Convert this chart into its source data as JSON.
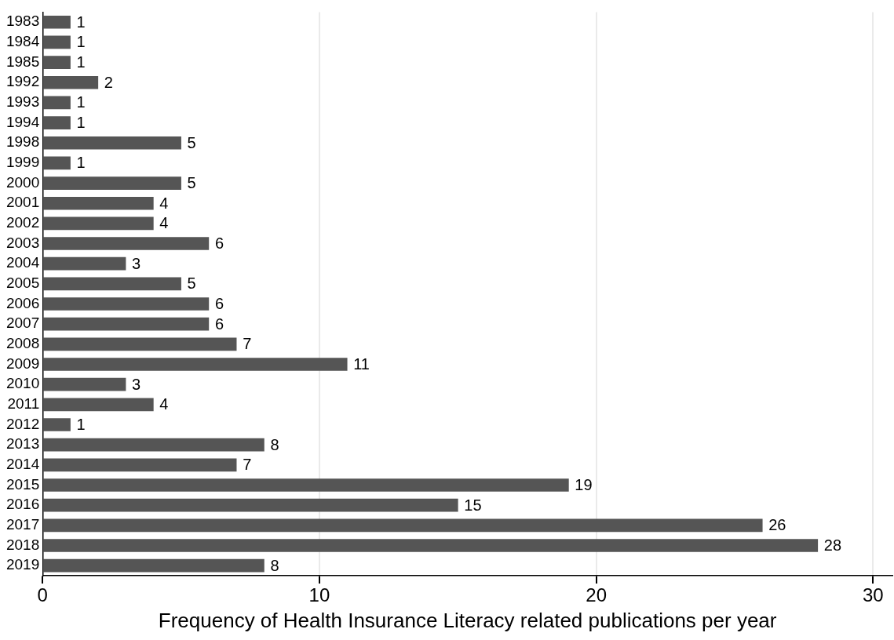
{
  "chart_data": {
    "type": "bar",
    "orientation": "horizontal",
    "xlabel": "Frequency of Health Insurance Literacy related publications per year",
    "categories": [
      "1983",
      "1984",
      "1985",
      "1992",
      "1993",
      "1994",
      "1998",
      "1999",
      "2000",
      "2001",
      "2002",
      "2003",
      "2004",
      "2005",
      "2006",
      "2007",
      "2008",
      "2009",
      "2010",
      "2011",
      "2012",
      "2013",
      "2014",
      "2015",
      "2016",
      "2017",
      "2018",
      "2019"
    ],
    "values": [
      1,
      1,
      1,
      2,
      1,
      1,
      5,
      1,
      5,
      4,
      4,
      6,
      3,
      5,
      6,
      6,
      7,
      11,
      3,
      4,
      1,
      8,
      7,
      19,
      15,
      26,
      28,
      8
    ],
    "color": "#555555",
    "xlim": [
      0,
      30.7
    ],
    "xticks": [
      0,
      10,
      20,
      30
    ],
    "grid": "x",
    "data_labels": true,
    "legend": false
  }
}
